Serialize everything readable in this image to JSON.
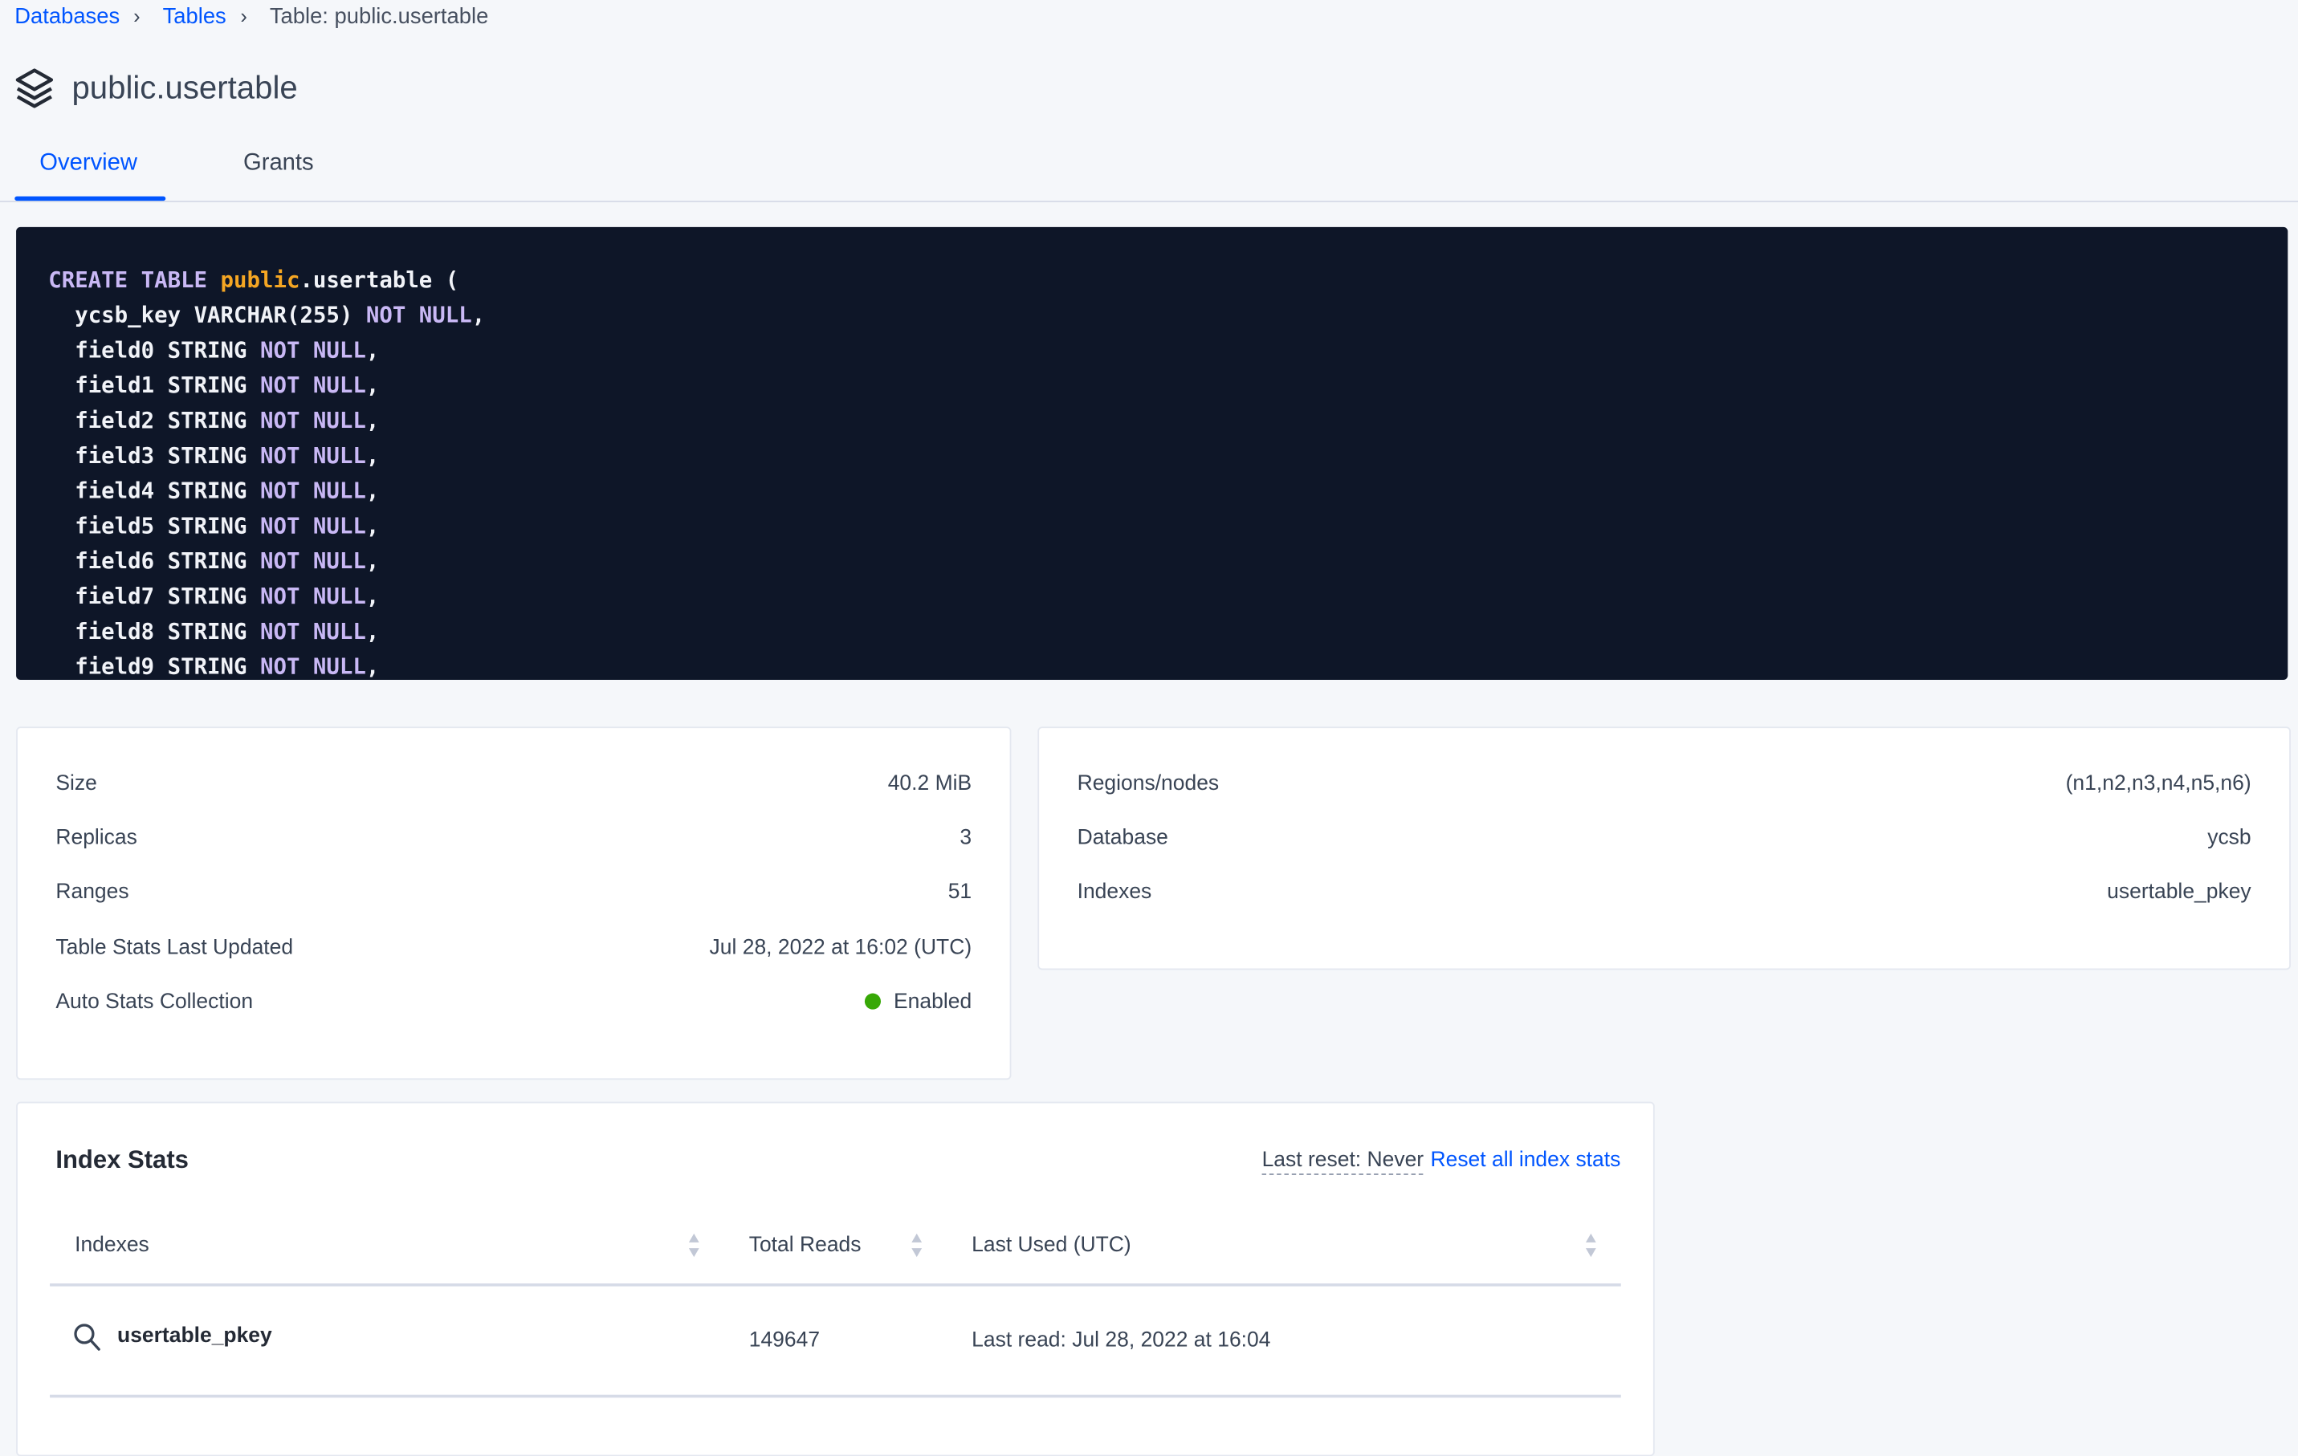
{
  "breadcrumb": [
    {
      "label": "Databases"
    },
    {
      "label": "Tables"
    },
    {
      "label": "Table: public.usertable"
    }
  ],
  "page": {
    "title": "public.usertable",
    "icon": "stack-layers-icon"
  },
  "tabs": [
    {
      "label": "Overview",
      "active": true
    },
    {
      "label": "Grants",
      "active": false
    }
  ],
  "create_statement": {
    "line0": {
      "kw": "CREATE TABLE",
      "schema": "public",
      "rest": ".usertable ("
    },
    "columns": [
      {
        "name": "ycsb_key",
        "type": "VARCHAR(255)",
        "constraint": "NOT NULL"
      },
      {
        "name": "field0",
        "type": "STRING",
        "constraint": "NOT NULL"
      },
      {
        "name": "field1",
        "type": "STRING",
        "constraint": "NOT NULL"
      },
      {
        "name": "field2",
        "type": "STRING",
        "constraint": "NOT NULL"
      },
      {
        "name": "field3",
        "type": "STRING",
        "constraint": "NOT NULL"
      },
      {
        "name": "field4",
        "type": "STRING",
        "constraint": "NOT NULL"
      },
      {
        "name": "field5",
        "type": "STRING",
        "constraint": "NOT NULL"
      },
      {
        "name": "field6",
        "type": "STRING",
        "constraint": "NOT NULL"
      },
      {
        "name": "field7",
        "type": "STRING",
        "constraint": "NOT NULL"
      },
      {
        "name": "field8",
        "type": "STRING",
        "constraint": "NOT NULL"
      },
      {
        "name": "field9",
        "type": "STRING",
        "constraint": "NOT NULL"
      }
    ]
  },
  "summary": [
    {
      "label": "Size",
      "value": "40.2 MiB"
    },
    {
      "label": "Replicas",
      "value": "3"
    },
    {
      "label": "Ranges",
      "value": "51"
    },
    {
      "label": "Table Stats Last Updated",
      "value": "Jul 28, 2022 at 16:02 (UTC)"
    },
    {
      "label": "Auto Stats Collection",
      "value": "Enabled",
      "status_color": "#37a806"
    }
  ],
  "details": [
    {
      "label": "Regions/nodes",
      "value": "(n1,n2,n3,n4,n5,n6)"
    },
    {
      "label": "Database",
      "value": "ycsb"
    },
    {
      "label": "Indexes",
      "value": "usertable_pkey"
    }
  ],
  "index_stats": {
    "title": "Index Stats",
    "last_reset": "Last reset: Never",
    "reset_link": "Reset all index stats",
    "columns": [
      "Indexes",
      "Total Reads",
      "Last Used (UTC)"
    ],
    "rows": [
      {
        "index": "usertable_pkey",
        "total_reads": "149647",
        "last_used": "Last read: Jul 28, 2022 at 16:04"
      }
    ]
  },
  "colors": {
    "accent": "#0055ff",
    "code_bg": "#0e1628",
    "keyword": "#c9b8f5",
    "schema": "#f5a623"
  }
}
